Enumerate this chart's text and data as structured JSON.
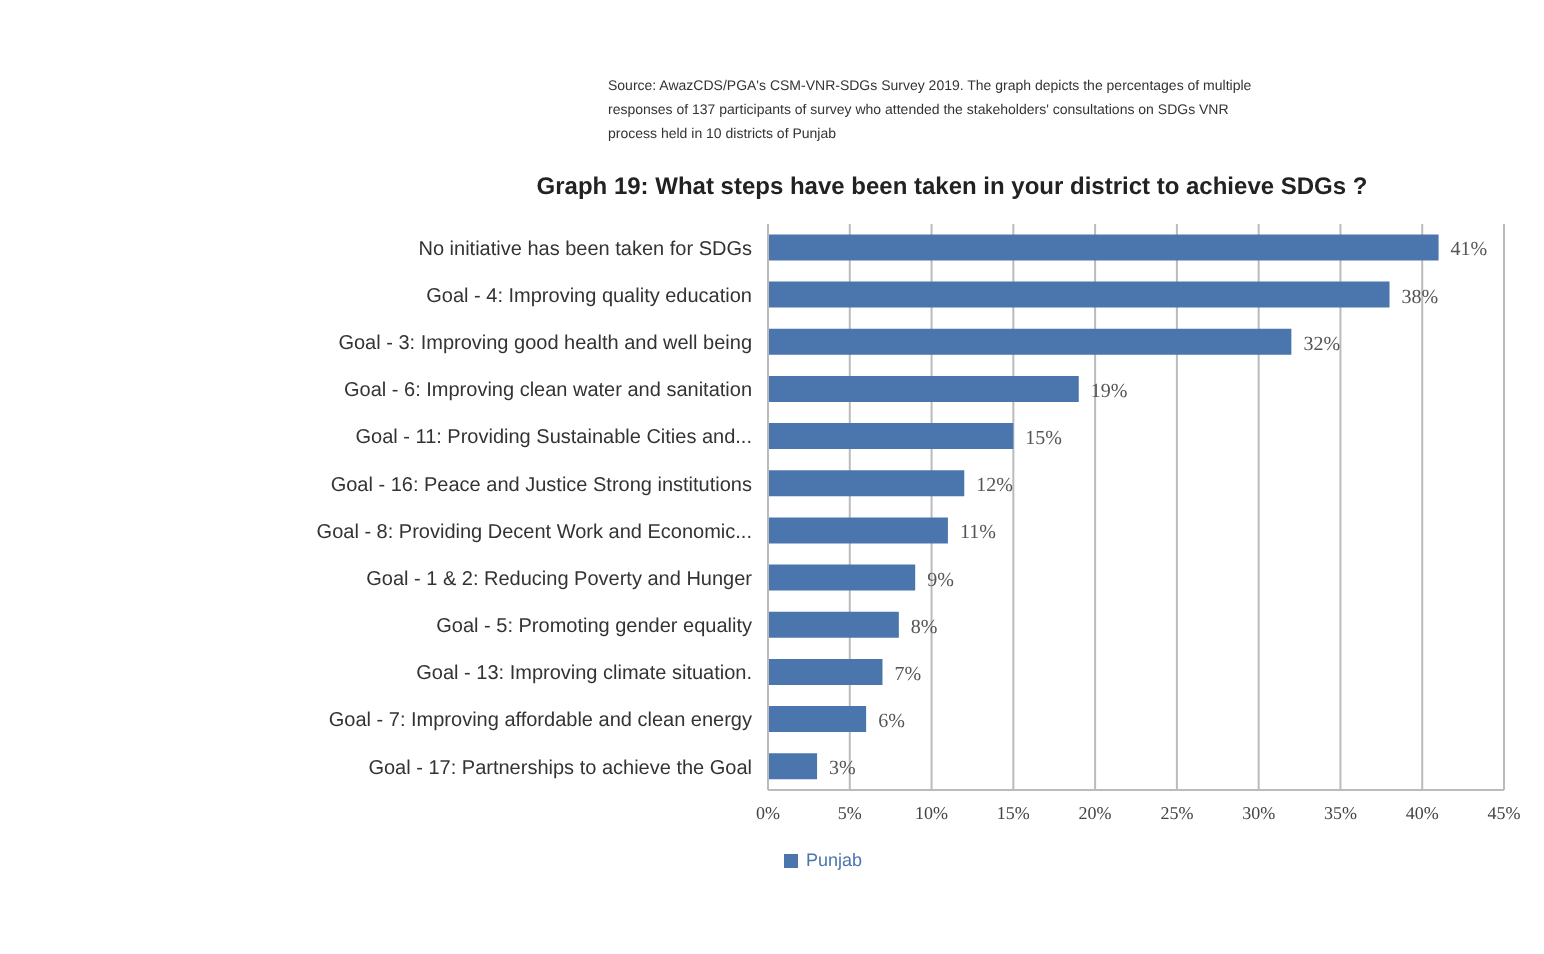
{
  "chart_data": {
    "type": "bar",
    "orientation": "horizontal",
    "title": "Graph 19: What steps have been taken in your district to achieve SDGs ?",
    "subtitle": "Source: AwazCDS/PGA's CSM-VNR-SDGs Survey 2019. The graph depicts the percentages of multiple responses of 137 participants of survey who attended the stakeholders' consultations on SDGs VNR process held in 10 districts of Punjab",
    "categories": [
      "No initiative has been taken for SDGs",
      "Goal - 4: Improving quality education",
      "Goal - 3: Improving good health and well being",
      "Goal - 6: Improving clean water and sanitation",
      "Goal - 11: Providing Sustainable Cities and...",
      "Goal - 16: Peace and Justice Strong institutions",
      "Goal - 8: Providing Decent Work and Economic...",
      "Goal - 1 & 2: Reducing Poverty and Hunger",
      "Goal - 5: Promoting gender equality",
      "Goal - 13: Improving climate situation.",
      "Goal - 7: Improving affordable and clean energy",
      "Goal - 17: Partnerships to achieve the Goal"
    ],
    "series": [
      {
        "name": "Punjab",
        "color": "#4a76ad",
        "values": [
          41,
          38,
          32,
          19,
          15,
          12,
          11,
          9,
          8,
          7,
          6,
          3
        ],
        "value_labels": [
          "41%",
          "38%",
          "32%",
          "19%",
          "15%",
          "12%",
          "11%",
          "9%",
          "8%",
          "7%",
          "6%",
          "3%"
        ]
      }
    ],
    "xlim": [
      0,
      45
    ],
    "xticks": [
      {
        "value": 0,
        "label": "0%"
      },
      {
        "value": 5,
        "label": "5%"
      },
      {
        "value": 10,
        "label": "10%"
      },
      {
        "value": 15,
        "label": "15%"
      },
      {
        "value": 20,
        "label": "20%"
      },
      {
        "value": 25,
        "label": "25%"
      },
      {
        "value": 30,
        "label": "30%"
      },
      {
        "value": 35,
        "label": "35%"
      },
      {
        "value": 40,
        "label": "40%"
      },
      {
        "value": 45,
        "label": "45%"
      }
    ],
    "grid": "x",
    "legend": "bottom"
  }
}
